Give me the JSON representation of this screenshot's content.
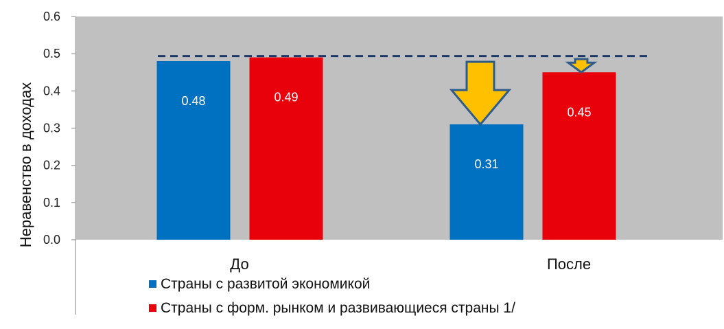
{
  "chart_data": {
    "type": "bar",
    "title": "",
    "xlabel": "",
    "ylabel": "Неравенство в доходах",
    "ylim": [
      0,
      0.6
    ],
    "yticks": [
      "0.0",
      "0.1",
      "0.2",
      "0.3",
      "0.4",
      "0.5",
      "0.6"
    ],
    "categories": [
      "До",
      "После"
    ],
    "series": [
      {
        "name": "Страны с развитой экономикой",
        "color": "#0070C0",
        "values": [
          0.48,
          0.31
        ],
        "labels": [
          "0.48",
          "0.31"
        ]
      },
      {
        "name": "Страны с форм. рынком и развивающиеся страны 1/",
        "color": "#E8000B",
        "values": [
          0.49,
          0.45
        ],
        "labels": [
          "0.49",
          "0.45"
        ]
      }
    ],
    "reference_line": {
      "value": 0.49,
      "style": "dashed",
      "color": "#1F3864"
    },
    "annotations": [
      {
        "type": "down-arrow",
        "series": 0,
        "category": 1,
        "color": "#FFC000",
        "border": "#2E5C8A"
      },
      {
        "type": "down-arrow",
        "series": 1,
        "category": 1,
        "color": "#FFC000",
        "border": "#2E5C8A"
      }
    ],
    "plot_background": "#C0C0C0",
    "grid": false,
    "legend_position": "bottom"
  }
}
